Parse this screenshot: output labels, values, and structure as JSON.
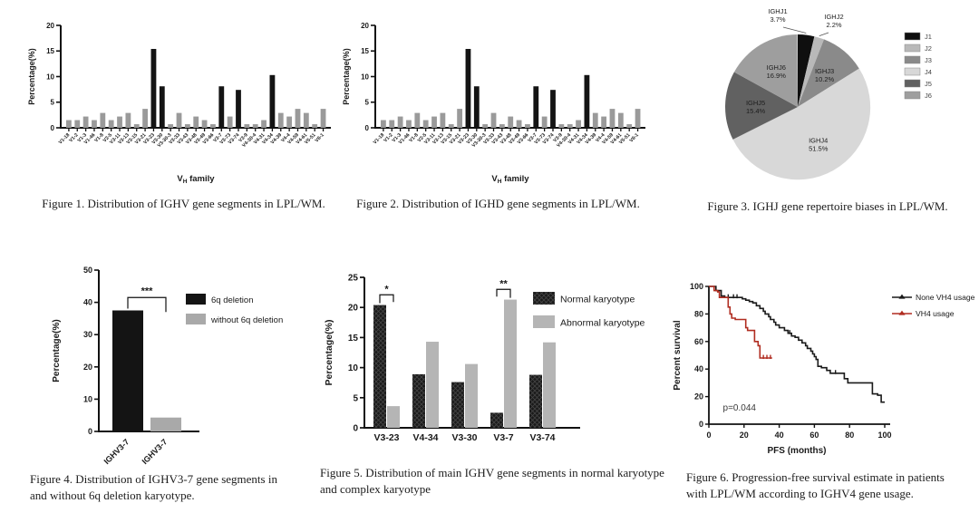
{
  "page": {
    "background": "#ffffff"
  },
  "chart_data": [
    {
      "id": "figure1",
      "type": "bar",
      "caption": "Figure 1. Distribution of IGHV gene segments in LPL/WM.",
      "ylabel": "Percentage(%)",
      "xlabel_parts": [
        "V",
        "H",
        " family"
      ],
      "ylim": [
        0,
        20
      ],
      "yticks": [
        0,
        5,
        10,
        15,
        20
      ],
      "categories": [
        "V1-18",
        "V1-2",
        "V1-3",
        "V1-46",
        "V1-8",
        "V2-5",
        "V3-11",
        "V3-13",
        "V3-15",
        "V3-21",
        "V3-23",
        "V3-30",
        "V3-30-3",
        "V3-33",
        "V3-43",
        "V3-48",
        "V3-49",
        "V3-66",
        "V3-7",
        "V3-73",
        "V3-74",
        "V3-9",
        "V4-30-4",
        "V4-31",
        "V4-34",
        "V4-39",
        "V4-4",
        "V4-59",
        "V4-61",
        "V5-51",
        "V6-1"
      ],
      "values": [
        1.5,
        1.5,
        2.2,
        1.5,
        2.9,
        1.5,
        2.2,
        2.9,
        0.7,
        3.7,
        15.4,
        8.1,
        0.7,
        2.9,
        0.7,
        2.2,
        1.5,
        0.7,
        8.1,
        2.2,
        7.4,
        0.7,
        0.7,
        1.5,
        10.3,
        2.9,
        2.2,
        3.7,
        2.9,
        0.7,
        3.7
      ],
      "highlight_indices": [
        10,
        11,
        18,
        20,
        24
      ],
      "bar_color": "#9a9a9a",
      "highlight_color": "#141414"
    },
    {
      "id": "figure2",
      "type": "bar",
      "caption": "Figure 2. Distribution of IGHD gene segments in LPL/WM.",
      "ylabel": "Percentage(%)",
      "xlabel_parts": [
        "V",
        "H",
        " family"
      ],
      "ylim": [
        0,
        20
      ],
      "yticks": [
        0,
        5,
        10,
        15,
        20
      ],
      "categories": [
        "V1-18",
        "V1-2",
        "V1-3",
        "V1-46",
        "V1-8",
        "V2-5",
        "V3-11",
        "V3-13",
        "V3-15",
        "V3-21",
        "V3-23",
        "V3-30",
        "V3-30-3",
        "V3-33",
        "V3-43",
        "V3-48",
        "V3-49",
        "V3-66",
        "V3-7",
        "V3-73",
        "V3-74",
        "V3-9",
        "V4-30-4",
        "V4-31",
        "V4-34",
        "V4-39",
        "V4-4",
        "V4-59",
        "V4-61",
        "V5-51",
        "V6-1"
      ],
      "values": [
        1.5,
        1.5,
        2.2,
        1.5,
        2.9,
        1.5,
        2.2,
        2.9,
        0.7,
        3.7,
        15.4,
        8.1,
        0.7,
        2.9,
        0.7,
        2.2,
        1.5,
        0.7,
        8.1,
        2.2,
        7.4,
        0.7,
        0.7,
        1.5,
        10.3,
        2.9,
        2.2,
        3.7,
        2.9,
        0.7,
        3.7
      ],
      "highlight_indices": [
        10,
        11,
        18,
        20,
        24
      ],
      "bar_color": "#9a9a9a",
      "highlight_color": "#141414"
    },
    {
      "id": "figure3",
      "type": "pie",
      "caption": "Figure 3. IGHJ gene repertoire biases in LPL/WM.",
      "slices": [
        {
          "label": "IGHJ1",
          "pct_label": "3.7%",
          "value": 3.7,
          "color": "#0f0f0f",
          "legend": "J1",
          "outside": true
        },
        {
          "label": "IGHJ2",
          "pct_label": "2.2%",
          "value": 2.2,
          "color": "#b9b9b9",
          "legend": "J2",
          "outside": true
        },
        {
          "label": "IGHJ3",
          "pct_label": "10.2%",
          "value": 10.2,
          "color": "#8a8a8a",
          "legend": "J3",
          "outside": false
        },
        {
          "label": "IGHJ4",
          "pct_label": "51.5%",
          "value": 51.5,
          "color": "#d8d8d8",
          "legend": "J4",
          "outside": false
        },
        {
          "label": "IGHJ5",
          "pct_label": "15.4%",
          "value": 15.4,
          "color": "#616161",
          "legend": "J5",
          "outside": false
        },
        {
          "label": "IGHJ6",
          "pct_label": "16.9%",
          "value": 16.9,
          "color": "#9e9e9e",
          "legend": "J6",
          "outside": false
        }
      ]
    },
    {
      "id": "figure4",
      "type": "pair-bar",
      "caption_lines": [
        "Figure 4. Distribution of IGHV3-7 gene segments in",
        "and  without 6q deletion karyotype."
      ],
      "ylabel": "Percentage(%)",
      "ylim": [
        0,
        50
      ],
      "yticks": [
        0,
        10,
        20,
        30,
        40,
        50
      ],
      "categories": [
        "IGHV3-7",
        "IGHV3-7"
      ],
      "values": [
        37.5,
        4.3
      ],
      "colors": [
        "#141414",
        "#a9a9a9"
      ],
      "significance": "***",
      "legend": [
        {
          "label": "6q deletion",
          "color": "#141414"
        },
        {
          "label": "without 6q deletion",
          "color": "#a9a9a9"
        }
      ]
    },
    {
      "id": "figure5",
      "type": "grouped-bar",
      "caption_lines": [
        "Figure 5. Distribution of main IGHV gene segments in normal karyotype",
        "and complex karyotype"
      ],
      "ylabel": "Percentage(%)",
      "ylim": [
        0,
        25
      ],
      "yticks": [
        0,
        5,
        10,
        15,
        20,
        25
      ],
      "categories": [
        "V3-23",
        "V4-34",
        "V3-30",
        "V3-7",
        "V3-74"
      ],
      "series": [
        {
          "name": "Normal karyotype",
          "color": "#1a1a1a",
          "hatched": true,
          "values": [
            20.4,
            8.9,
            7.6,
            2.5,
            8.8
          ]
        },
        {
          "name": "Abnormal karyotype",
          "color": "#b5b5b5",
          "hatched": false,
          "values": [
            3.6,
            14.3,
            10.6,
            21.3,
            14.2
          ]
        }
      ],
      "annotations": [
        {
          "category_index": 0,
          "text": "*"
        },
        {
          "category_index": 3,
          "text": "**"
        }
      ]
    },
    {
      "id": "figure6",
      "type": "km",
      "caption_lines": [
        "Figure 6. Progression-free survival estimate in patients",
        "with LPL/WM according to IGHV4 gene usage."
      ],
      "xlabel": "PFS (months)",
      "ylabel": "Percent survival",
      "xlim": [
        0,
        100
      ],
      "ylim": [
        0,
        100
      ],
      "xticks": [
        0,
        20,
        40,
        60,
        80,
        100
      ],
      "yticks": [
        0,
        20,
        40,
        60,
        80,
        100
      ],
      "p_value_label": "p=0.044",
      "series": [
        {
          "name": "None VH4 usage",
          "color": "#1a1a1a",
          "points": [
            [
              0,
              100
            ],
            [
              4,
              100
            ],
            [
              4,
              97
            ],
            [
              7,
              97
            ],
            [
              7,
              93
            ],
            [
              9,
              93
            ],
            [
              9,
              92
            ],
            [
              19,
              92
            ],
            [
              19,
              91
            ],
            [
              21,
              91
            ],
            [
              21,
              90
            ],
            [
              23,
              90
            ],
            [
              23,
              89
            ],
            [
              25,
              89
            ],
            [
              25,
              88
            ],
            [
              27,
              88
            ],
            [
              27,
              86
            ],
            [
              29,
              86
            ],
            [
              29,
              84
            ],
            [
              31,
              84
            ],
            [
              31,
              82
            ],
            [
              32,
              82
            ],
            [
              32,
              80
            ],
            [
              34,
              80
            ],
            [
              34,
              78
            ],
            [
              35,
              78
            ],
            [
              35,
              76
            ],
            [
              37,
              76
            ],
            [
              37,
              74
            ],
            [
              38,
              74
            ],
            [
              38,
              72
            ],
            [
              40,
              72
            ],
            [
              40,
              70
            ],
            [
              43,
              70
            ],
            [
              43,
              68
            ],
            [
              45,
              68
            ],
            [
              45,
              66
            ],
            [
              47,
              66
            ],
            [
              47,
              64
            ],
            [
              49,
              64
            ],
            [
              49,
              63
            ],
            [
              51,
              63
            ],
            [
              51,
              61
            ],
            [
              53,
              61
            ],
            [
              53,
              59
            ],
            [
              55,
              59
            ],
            [
              55,
              57
            ],
            [
              56,
              57
            ],
            [
              56,
              55
            ],
            [
              58,
              55
            ],
            [
              58,
              53
            ],
            [
              59,
              53
            ],
            [
              59,
              51
            ],
            [
              60,
              51
            ],
            [
              60,
              49
            ],
            [
              61,
              49
            ],
            [
              61,
              47
            ],
            [
              62,
              47
            ],
            [
              62,
              42
            ],
            [
              64,
              42
            ],
            [
              64,
              41
            ],
            [
              67,
              41
            ],
            [
              67,
              39
            ],
            [
              69,
              39
            ],
            [
              69,
              37
            ],
            [
              77,
              37
            ],
            [
              77,
              33
            ],
            [
              79,
              33
            ],
            [
              79,
              30
            ],
            [
              93,
              30
            ],
            [
              93,
              22
            ],
            [
              96,
              22
            ],
            [
              96,
              21
            ],
            [
              98,
              21
            ],
            [
              98,
              16
            ],
            [
              100,
              16
            ]
          ],
          "censors": [
            [
              11,
              92
            ],
            [
              14,
              92
            ],
            [
              16,
              92
            ],
            [
              46,
              66
            ],
            [
              72,
              37
            ]
          ]
        },
        {
          "name": "VH4 usage",
          "color": "#b02c20",
          "points": [
            [
              0,
              100
            ],
            [
              3,
              100
            ],
            [
              3,
              97
            ],
            [
              5,
              97
            ],
            [
              5,
              96
            ],
            [
              6,
              96
            ],
            [
              6,
              92
            ],
            [
              11,
              92
            ],
            [
              11,
              85
            ],
            [
              12,
              85
            ],
            [
              12,
              80
            ],
            [
              13,
              80
            ],
            [
              13,
              77
            ],
            [
              15,
              77
            ],
            [
              15,
              76
            ],
            [
              21,
              76
            ],
            [
              21,
              70
            ],
            [
              22,
              70
            ],
            [
              22,
              68
            ],
            [
              26,
              68
            ],
            [
              26,
              60
            ],
            [
              28,
              60
            ],
            [
              28,
              57
            ],
            [
              29,
              57
            ],
            [
              29,
              48
            ],
            [
              36,
              48
            ]
          ],
          "censors": [
            [
              31,
              48
            ],
            [
              33,
              48
            ],
            [
              35,
              48
            ]
          ]
        }
      ]
    }
  ]
}
